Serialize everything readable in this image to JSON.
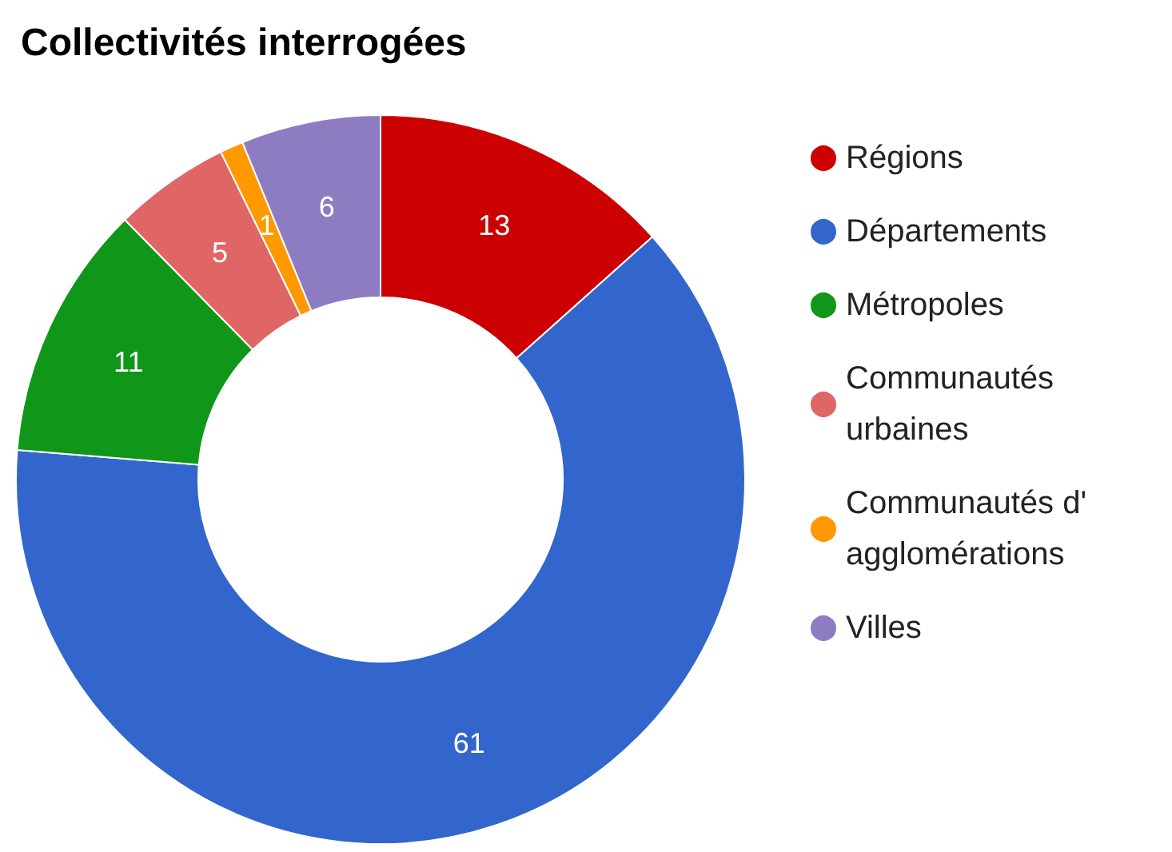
{
  "chart_data": {
    "type": "donut",
    "title": "Collectivités interrogées",
    "categories": [
      "Régions",
      "Départements",
      "Métropoles",
      "Communautés urbaines",
      "Communautés d' agglomérations",
      "Villes"
    ],
    "values": [
      13,
      61,
      11,
      5,
      1,
      6
    ],
    "colors": [
      "#cc0000",
      "#3366cc",
      "#109618",
      "#e06666",
      "#ff9900",
      "#8e7cc3"
    ],
    "data_labels": true,
    "legend": "right"
  }
}
